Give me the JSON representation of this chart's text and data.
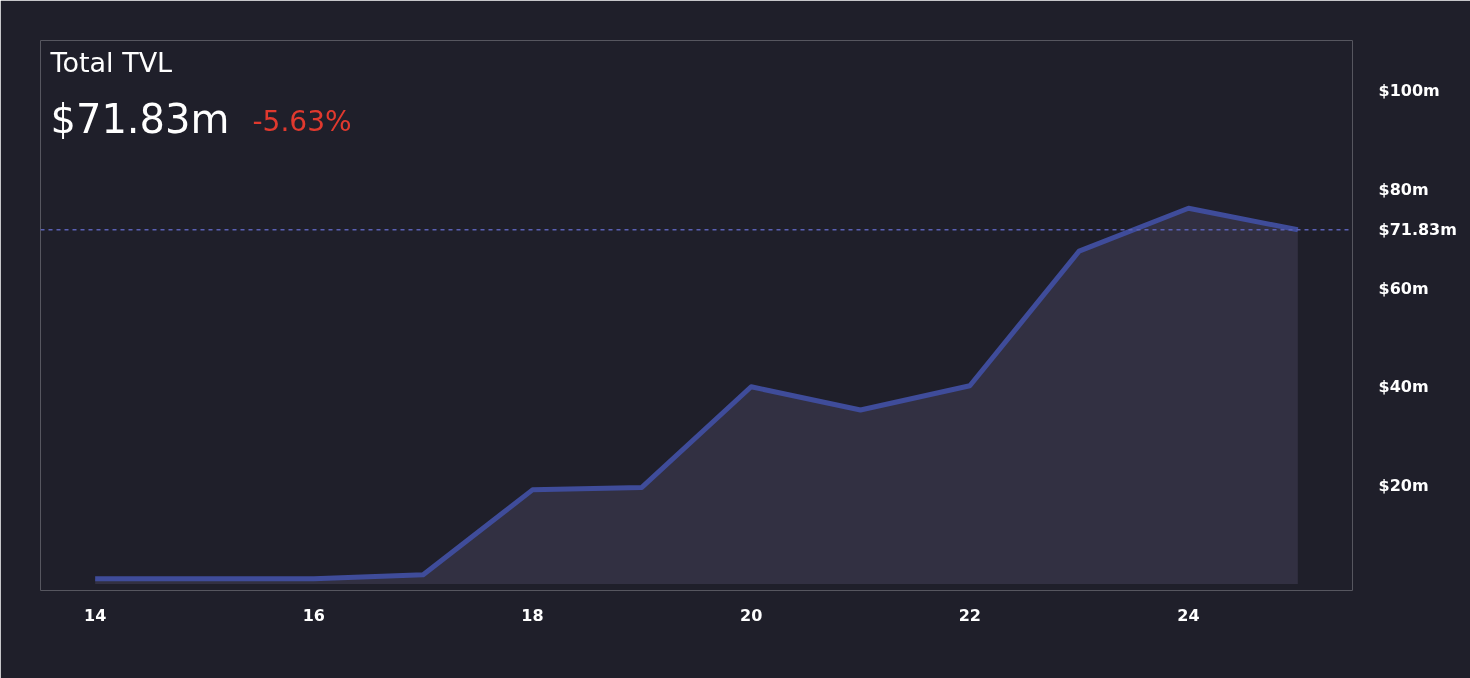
{
  "chart_data": {
    "type": "area",
    "title": "Total TVL",
    "subtitle": "$71.83m",
    "annotations": [
      "-5.63%"
    ],
    "x": [
      14,
      15,
      16,
      17,
      18,
      19,
      20,
      21,
      22,
      23,
      24,
      25
    ],
    "series": [
      {
        "color": "#3f4c9a",
        "values": [
          1.1,
          1.1,
          1.1,
          1.9,
          19.1,
          19.6,
          40.0,
          35.3,
          40.2,
          67.5,
          76.2,
          71.83
        ]
      }
    ],
    "xlim": [
      13.5,
      25.5
    ],
    "xticks": [
      14,
      16,
      18,
      20,
      22,
      24
    ],
    "ylim": [
      -1.3,
      110.2
    ],
    "yticks": [
      {
        "value": 20,
        "label": "$20m"
      },
      {
        "value": 40,
        "label": "$40m"
      },
      {
        "value": 60,
        "label": "$60m"
      },
      {
        "value": 80,
        "label": "$80m"
      },
      {
        "value": 100,
        "label": "$100m"
      }
    ],
    "ref_lines": [
      {
        "axis": "y",
        "value": 71.83,
        "label": "$71.83m",
        "color": "#5a60b4",
        "line_style": "dashed"
      }
    ],
    "grid": false,
    "line_style": "solid"
  }
}
